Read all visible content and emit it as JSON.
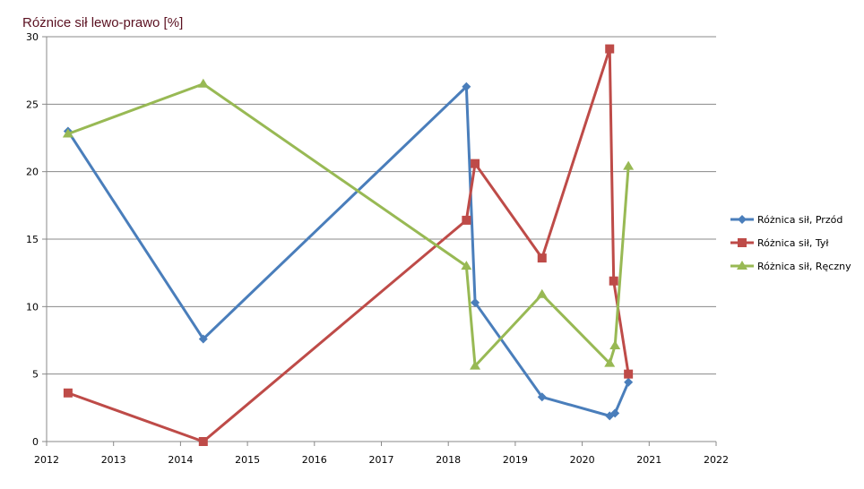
{
  "chart_data": {
    "type": "line",
    "title": "Różnice sił lewo-prawo [%]",
    "xlabel": "",
    "ylabel": "",
    "xlim": [
      2012,
      2022
    ],
    "ylim": [
      0,
      30
    ],
    "xticks": [
      "2012",
      "2013",
      "2014",
      "2015",
      "2016",
      "2017",
      "2018",
      "2019",
      "2020",
      "2021",
      "2022"
    ],
    "yticks": [
      "0",
      "5",
      "10",
      "15",
      "20",
      "25",
      "30"
    ],
    "grid": "horizontal",
    "legend_position": "right",
    "series": [
      {
        "name": "Różnica sił, Przód",
        "color": "#4a7ebb",
        "marker": "diamond",
        "x": [
          2012.32,
          2014.34,
          2018.27,
          2018.4,
          2019.4,
          2020.41,
          2020.49,
          2020.69
        ],
        "y": [
          23.0,
          7.6,
          26.3,
          10.3,
          3.3,
          1.9,
          2.1,
          4.4
        ]
      },
      {
        "name": "Różnica sił, Tył",
        "color": "#be4b48",
        "marker": "square",
        "x": [
          2012.32,
          2014.34,
          2018.27,
          2018.4,
          2019.4,
          2020.41,
          2020.47,
          2020.69
        ],
        "y": [
          3.6,
          0.0,
          16.4,
          20.6,
          13.6,
          29.1,
          11.9,
          5.0
        ]
      },
      {
        "name": "Różnica sił, Ręczny",
        "color": "#98b954",
        "marker": "triangle",
        "x": [
          2012.32,
          2014.34,
          2018.27,
          2018.4,
          2019.4,
          2020.41,
          2020.49,
          2020.69
        ],
        "y": [
          22.8,
          26.5,
          13.0,
          5.6,
          10.9,
          5.8,
          7.1,
          20.4
        ]
      }
    ]
  }
}
